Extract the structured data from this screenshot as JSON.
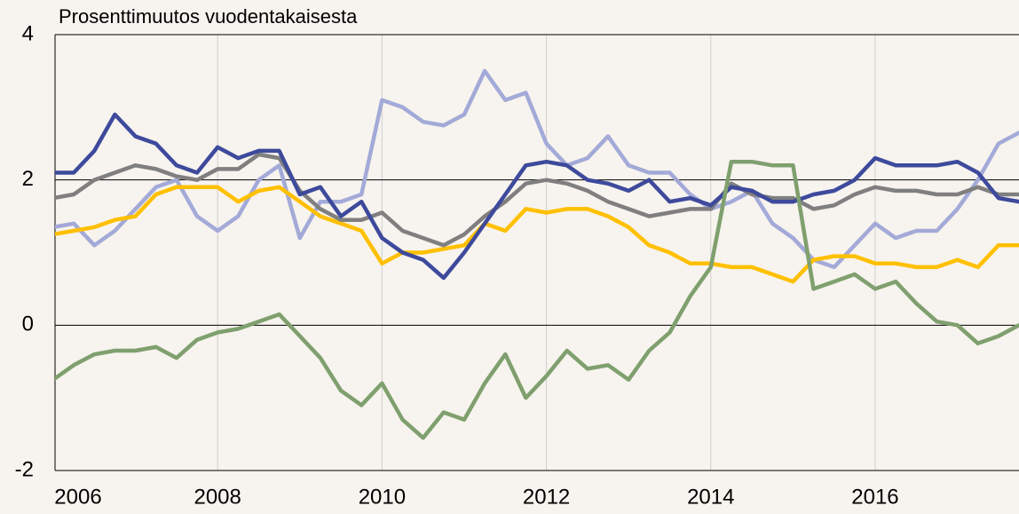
{
  "chart_data": {
    "type": "line",
    "title": "Prosenttimuutos vuodentakaisesta",
    "x": [
      2006,
      2006.25,
      2006.5,
      2006.75,
      2007,
      2007.25,
      2007.5,
      2007.75,
      2008,
      2008.25,
      2008.5,
      2008.75,
      2009,
      2009.25,
      2009.5,
      2009.75,
      2010,
      2010.25,
      2010.5,
      2010.75,
      2011,
      2011.25,
      2011.5,
      2011.75,
      2012,
      2012.25,
      2012.5,
      2012.75,
      2013,
      2013.25,
      2013.5,
      2013.75,
      2014,
      2014.25,
      2014.5,
      2014.75,
      2015,
      2015.25,
      2015.5,
      2015.75,
      2016,
      2016.25,
      2016.5,
      2016.75,
      2017,
      2017.25,
      2017.5,
      2017.75
    ],
    "series": [
      {
        "color": "#a3aad8",
        "values": [
          1.35,
          1.4,
          1.1,
          1.3,
          1.6,
          1.9,
          2.0,
          1.5,
          1.3,
          1.5,
          2.0,
          2.2,
          1.2,
          1.7,
          1.7,
          1.8,
          3.1,
          3.0,
          2.8,
          2.75,
          2.9,
          3.5,
          3.1,
          3.2,
          2.5,
          2.2,
          2.3,
          2.6,
          2.2,
          2.1,
          2.1,
          1.8,
          1.6,
          1.7,
          1.85,
          1.4,
          1.2,
          0.9,
          0.8,
          1.1,
          1.4,
          1.2,
          1.3,
          1.3,
          1.6,
          2.0,
          2.5,
          2.65
        ]
      },
      {
        "color": "#ffc000",
        "values": [
          1.25,
          1.3,
          1.35,
          1.45,
          1.5,
          1.8,
          1.9,
          1.9,
          1.9,
          1.7,
          1.85,
          1.9,
          1.7,
          1.5,
          1.4,
          1.3,
          0.85,
          1.0,
          1.0,
          1.05,
          1.1,
          1.4,
          1.3,
          1.6,
          1.55,
          1.6,
          1.6,
          1.5,
          1.35,
          1.1,
          1.0,
          0.85,
          0.85,
          0.8,
          0.8,
          0.7,
          0.6,
          0.9,
          0.95,
          0.95,
          0.85,
          0.85,
          0.8,
          0.8,
          0.9,
          0.8,
          1.1,
          1.1
        ]
      },
      {
        "color": "#7f7f7f",
        "values": [
          1.75,
          1.8,
          2.0,
          2.1,
          2.2,
          2.15,
          2.05,
          2.0,
          2.15,
          2.15,
          2.35,
          2.3,
          1.85,
          1.6,
          1.45,
          1.45,
          1.55,
          1.3,
          1.2,
          1.1,
          1.25,
          1.5,
          1.7,
          1.95,
          2.0,
          1.95,
          1.85,
          1.7,
          1.6,
          1.5,
          1.55,
          1.6,
          1.6,
          1.95,
          1.8,
          1.75,
          1.75,
          1.6,
          1.65,
          1.8,
          1.9,
          1.85,
          1.85,
          1.8,
          1.8,
          1.9,
          1.8,
          1.8
        ]
      },
      {
        "color": "#3d4a9c",
        "values": [
          2.1,
          2.1,
          2.4,
          2.9,
          2.6,
          2.5,
          2.2,
          2.1,
          2.45,
          2.3,
          2.4,
          2.4,
          1.8,
          1.9,
          1.5,
          1.7,
          1.2,
          1.0,
          0.9,
          0.65,
          1.0,
          1.4,
          1.8,
          2.2,
          2.25,
          2.2,
          2.0,
          1.95,
          1.85,
          2.0,
          1.7,
          1.75,
          1.65,
          1.9,
          1.85,
          1.7,
          1.7,
          1.8,
          1.85,
          2.0,
          2.3,
          2.2,
          2.2,
          2.2,
          2.25,
          2.1,
          1.75,
          1.7
        ]
      },
      {
        "color": "#7fa06e",
        "values": [
          -0.75,
          -0.55,
          -0.4,
          -0.35,
          -0.35,
          -0.3,
          -0.45,
          -0.2,
          -0.1,
          -0.05,
          0.05,
          0.15,
          -0.15,
          -0.45,
          -0.9,
          -1.1,
          -0.8,
          -1.3,
          -1.55,
          -1.2,
          -1.3,
          -0.8,
          -0.4,
          -1.0,
          -0.7,
          -0.35,
          -0.6,
          -0.55,
          -0.75,
          -0.35,
          -0.1,
          0.4,
          0.8,
          2.25,
          2.25,
          2.2,
          2.2,
          0.5,
          0.6,
          0.7,
          0.5,
          0.6,
          0.3,
          0.05,
          0.0,
          -0.25,
          -0.15,
          0.0
        ]
      }
    ],
    "xlim": [
      2006,
      2017.75
    ],
    "xticks": [
      2006,
      2008,
      2010,
      2012,
      2014,
      2016
    ],
    "ylim": [
      -2,
      4
    ],
    "yticks": [
      -2,
      0,
      2,
      4
    ],
    "grid": true
  }
}
